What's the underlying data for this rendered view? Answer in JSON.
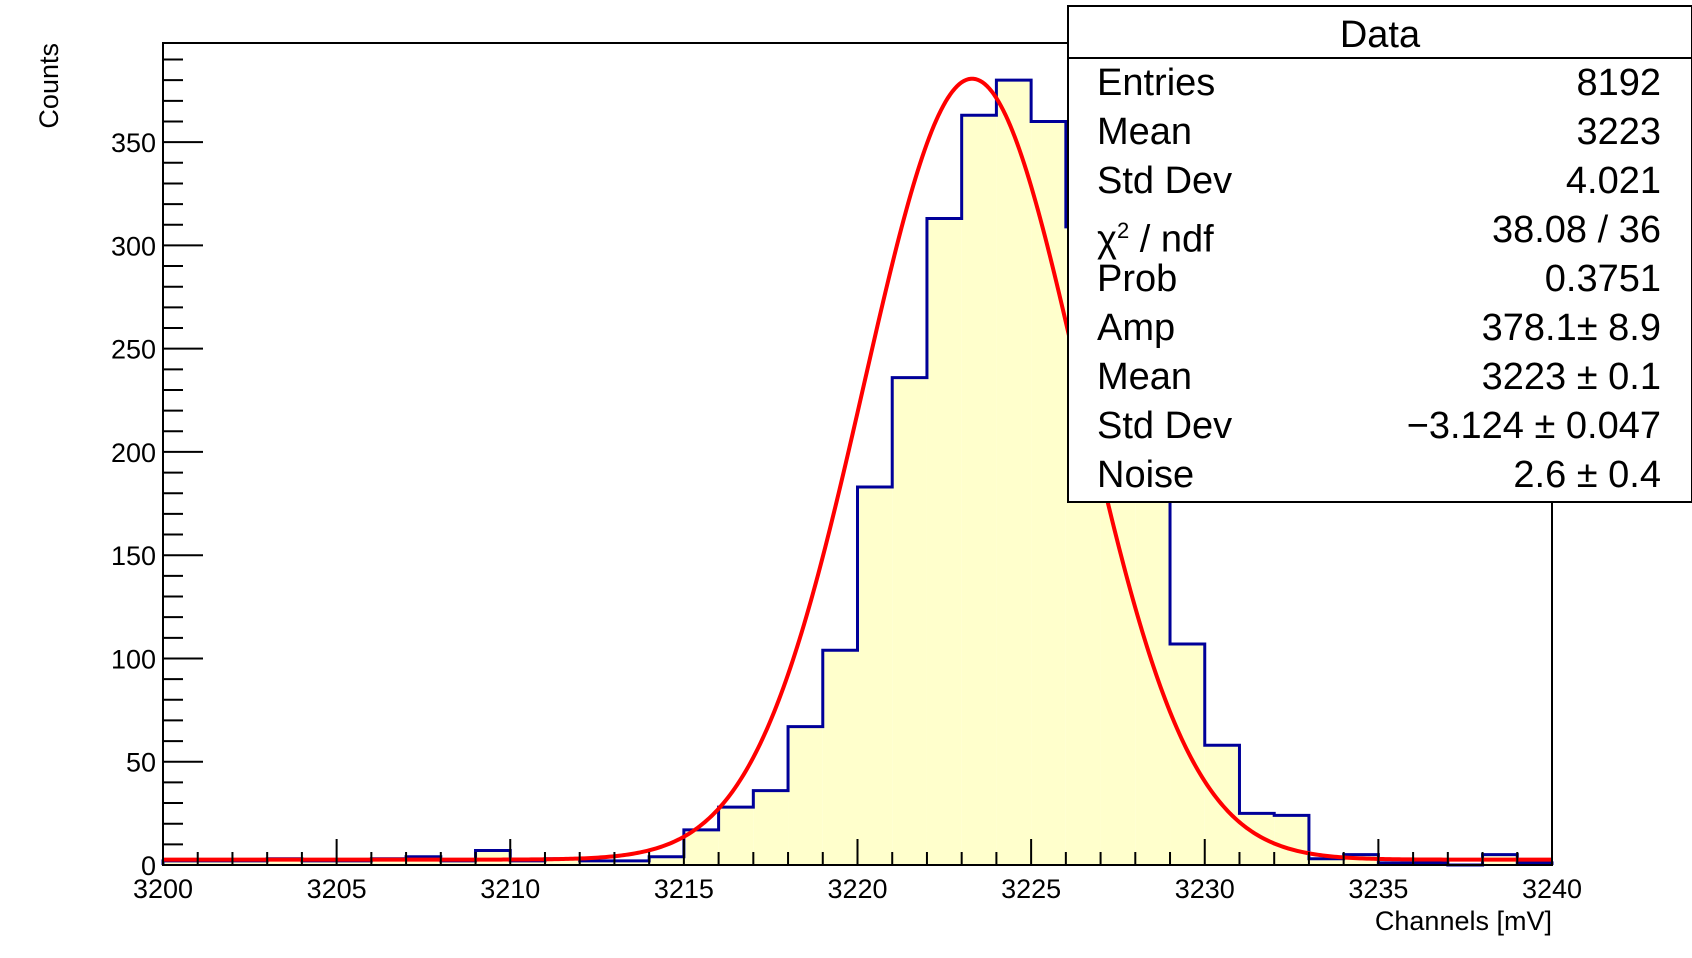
{
  "chart_data": {
    "type": "histogram",
    "xlabel": "Channels [mV]",
    "ylabel": "Counts",
    "xlim": [
      3200,
      3240
    ],
    "ylim": [
      0,
      398
    ],
    "x_ticks": [
      "3200",
      "3205",
      "3210",
      "3215",
      "3220",
      "3225",
      "3230",
      "3235",
      "3240"
    ],
    "y_ticks": [
      "0",
      "50",
      "100",
      "150",
      "200",
      "250",
      "300",
      "350"
    ],
    "bin_edges_start": 3200,
    "bin_width": 1,
    "bin_counts": [
      2,
      2,
      2,
      3,
      2,
      2,
      3,
      4,
      2,
      7,
      2,
      3,
      2,
      2,
      4,
      17,
      28,
      36,
      67,
      104,
      183,
      236,
      313,
      363,
      380,
      360,
      309,
      249,
      204,
      107,
      58,
      25,
      24,
      3,
      5,
      1,
      1,
      0,
      5,
      1
    ],
    "fit": {
      "function": "gaussian + noise",
      "amp": 378.1,
      "mean": 3223.3,
      "sigma": 3.124,
      "noise": 2.6,
      "color": "#ff0000"
    },
    "hist_line_color": "#000099",
    "hist_fill_color": "#ffffcc"
  },
  "stats_box": {
    "title": "Data",
    "rows": [
      {
        "name": "Entries",
        "value": "8192"
      },
      {
        "name": "Mean",
        "value": "3223"
      },
      {
        "name": "Std Dev",
        "value": "4.021"
      },
      {
        "name": "χ",
        "sup": "2",
        "name_rest": " / ndf",
        "value": "38.08 / 36"
      },
      {
        "name": "Prob",
        "value": "0.3751"
      },
      {
        "name": "Amp",
        "value": "378.1± 8.9"
      },
      {
        "name": "Mean",
        "value": "3223 ± 0.1"
      },
      {
        "name": "Std Dev",
        "value": "−3.124 ± 0.047"
      },
      {
        "name": "Noise",
        "value": "2.6 ± 0.4"
      }
    ]
  }
}
